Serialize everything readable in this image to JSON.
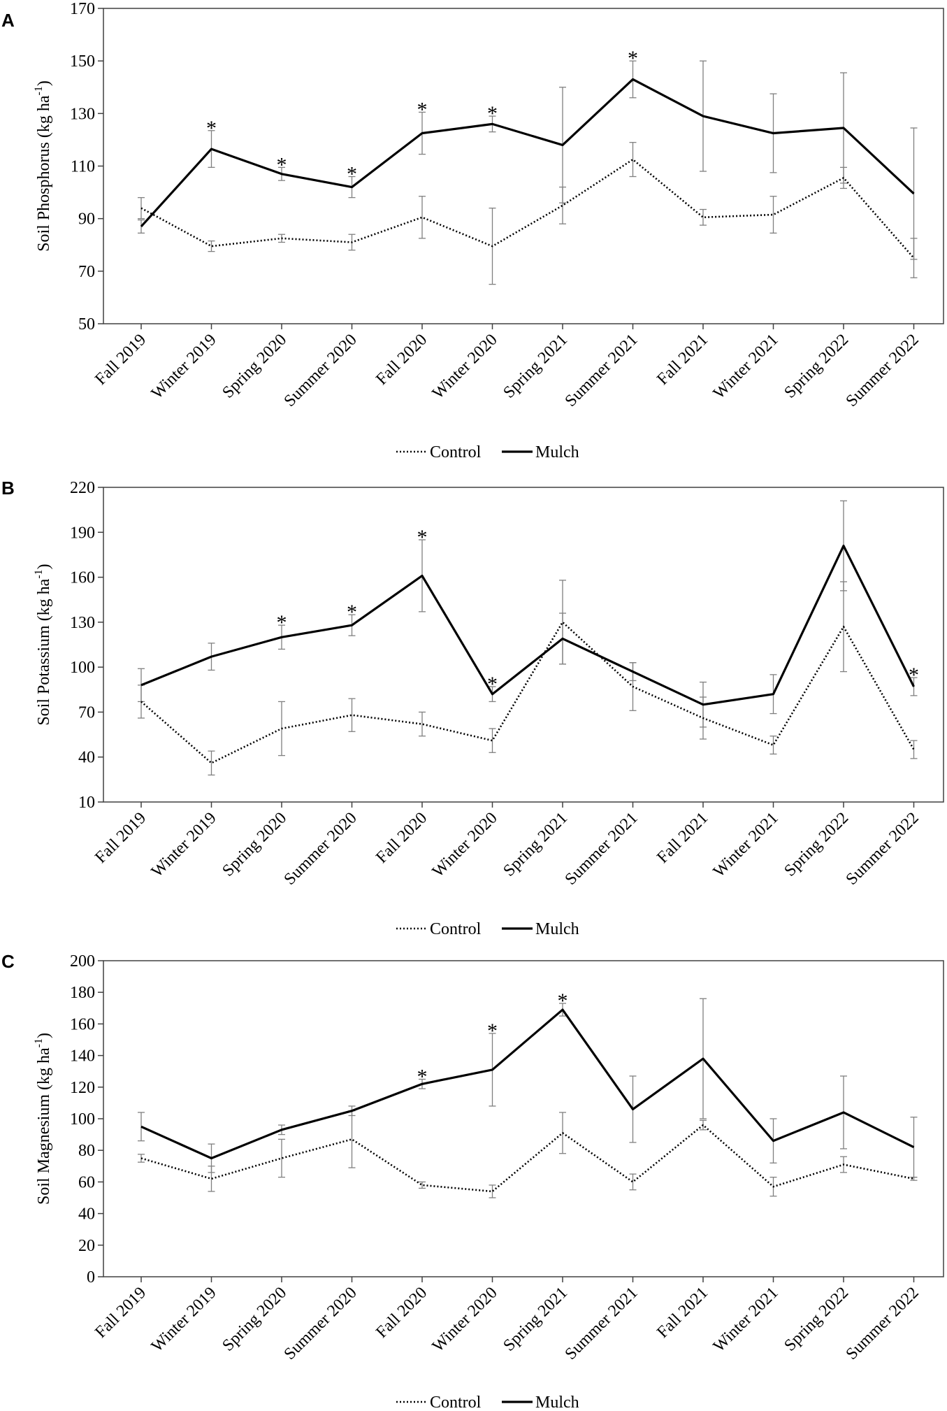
{
  "figure": {
    "chart_data": [
      {
        "panel": "A",
        "type": "line",
        "title": "",
        "xlabel": "",
        "ylabel": "Soil Phosphorus (kg ha",
        "ylabel_sup": "-1",
        "ylabel_end": ")",
        "ylim": [
          50,
          170
        ],
        "yticks": [
          50,
          70,
          90,
          110,
          130,
          150,
          170
        ],
        "categories": [
          "Fall 2019",
          "Winter 2019",
          "Spring 2020",
          "Summer 2020",
          "Fall 2020",
          "Winter 2020",
          "Spring 2021",
          "Summer 2021",
          "Fall 2021",
          "Winter 2021",
          "Spring 2022",
          "Summer 2022"
        ],
        "series": [
          {
            "name": "Control",
            "style": "dotted",
            "color": "#000000",
            "values": [
              94,
              79.5,
              82.5,
              81,
              90.5,
              79.5,
              95,
              112.5,
              90.5,
              91.5,
              105.5,
              75
            ],
            "errors": [
              4,
              2,
              1.5,
              3,
              8,
              14.5,
              7,
              6.5,
              3,
              7,
              4,
              7.5
            ]
          },
          {
            "name": "Mulch",
            "style": "solid",
            "color": "#000000",
            "values": [
              87,
              116.5,
              107,
              102,
              122.5,
              126,
              118,
              143,
              129,
              122.5,
              124.5,
              99.5
            ],
            "errors": [
              2.5,
              7,
              2.5,
              4,
              8,
              3,
              22,
              7,
              21,
              15,
              21,
              25
            ]
          }
        ],
        "significance": [
          {
            "category": "Winter 2019",
            "label": "*"
          },
          {
            "category": "Spring 2020",
            "label": "*"
          },
          {
            "category": "Summer 2020",
            "label": "*"
          },
          {
            "category": "Fall 2020",
            "label": "*"
          },
          {
            "category": "Winter 2020",
            "label": "*"
          },
          {
            "category": "Summer 2021",
            "label": "*"
          }
        ],
        "legend": [
          "Control",
          "Mulch"
        ],
        "legend_position": "bottom-center",
        "grid": false
      },
      {
        "panel": "B",
        "type": "line",
        "title": "",
        "xlabel": "",
        "ylabel": "Soil Potassium  (kg ha",
        "ylabel_sup": "-1",
        "ylabel_end": ")",
        "ylim": [
          10,
          220
        ],
        "yticks": [
          10,
          40,
          70,
          100,
          130,
          160,
          190,
          220
        ],
        "categories": [
          "Fall 2019",
          "Winter 2019",
          "Spring 2020",
          "Summer 2020",
          "Fall 2020",
          "Winter 2020",
          "Spring 2021",
          "Summer 2021",
          "Fall 2021",
          "Winter 2021",
          "Spring 2022",
          "Summer 2022"
        ],
        "series": [
          {
            "name": "Control",
            "style": "dotted",
            "color": "#000000",
            "values": [
              77,
              36,
              59,
              68,
              62,
              51,
              130,
              87,
              66,
              48,
              127,
              45
            ],
            "errors": [
              11,
              8,
              18,
              11,
              8,
              8,
              28,
              16,
              14,
              6,
              30,
              6
            ]
          },
          {
            "name": "Mulch",
            "style": "solid",
            "color": "#000000",
            "values": [
              88,
              107,
              120,
              128,
              161,
              82,
              119,
              97,
              75,
              82,
              181,
              87
            ],
            "errors": [
              11,
              9,
              8,
              7,
              24,
              5,
              17,
              6,
              15,
              13,
              30,
              6
            ]
          }
        ],
        "significance": [
          {
            "category": "Spring 2020",
            "label": "*"
          },
          {
            "category": "Summer 2020",
            "label": "*"
          },
          {
            "category": "Fall 2020",
            "label": "*"
          },
          {
            "category": "Winter 2020",
            "label": "*"
          },
          {
            "category": "Summer 2022",
            "label": "*"
          }
        ],
        "legend": [
          "Control",
          "Mulch"
        ],
        "legend_position": "bottom-center",
        "grid": false
      },
      {
        "panel": "C",
        "type": "line",
        "title": "",
        "xlabel": "",
        "ylabel": "Soil Magnesium (kg ha",
        "ylabel_sup": "-1",
        "ylabel_end": ")",
        "ylim": [
          0,
          200
        ],
        "yticks": [
          0,
          20,
          40,
          60,
          80,
          100,
          120,
          140,
          160,
          180,
          200
        ],
        "categories": [
          "Fall 2019",
          "Winter 2019",
          "Spring 2020",
          "Summer 2020",
          "Fall 2020",
          "Winter 2020",
          "Spring 2021",
          "Summer 2021",
          "Fall 2021",
          "Winter 2021",
          "Spring 2022",
          "Summer 2022"
        ],
        "series": [
          {
            "name": "Control",
            "style": "dotted",
            "color": "#000000",
            "values": [
              75,
              62,
              75,
              87,
              58,
              54,
              91,
              60,
              96,
              57,
              71,
              62
            ],
            "errors": [
              2.5,
              8,
              12,
              18,
              2,
              4,
              13,
              5,
              3,
              6,
              5,
              1
            ]
          },
          {
            "name": "Mulch",
            "style": "solid",
            "color": "#000000",
            "values": [
              95,
              75,
              93,
              105,
              122,
              131,
              169,
              106,
              138,
              86,
              104,
              82
            ],
            "errors": [
              9,
              9,
              3,
              3,
              3,
              23,
              4,
              21,
              38,
              14,
              23,
              19
            ]
          }
        ],
        "significance": [
          {
            "category": "Fall 2020",
            "label": "*"
          },
          {
            "category": "Winter 2020",
            "label": "*"
          },
          {
            "category": "Spring 2021",
            "label": "*"
          }
        ],
        "legend": [
          "Control",
          "Mulch"
        ],
        "legend_position": "bottom-center",
        "grid": false
      }
    ]
  },
  "colors": {
    "line": "#000000",
    "error_bar": "#808080",
    "axis": "#404040",
    "background": "#ffffff"
  }
}
